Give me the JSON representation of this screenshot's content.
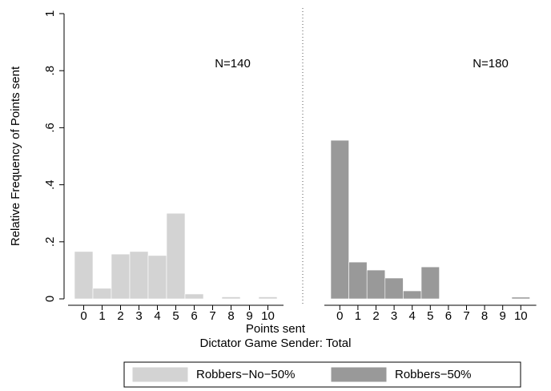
{
  "chart_data": {
    "type": "bar",
    "ylabel": "Relative Frequency of Points sent",
    "xlabel": "Points sent",
    "caption": "Dictator Game Sender: Total",
    "categories": [
      "0",
      "1",
      "2",
      "3",
      "4",
      "5",
      "6",
      "7",
      "8",
      "9",
      "10"
    ],
    "series": [
      {
        "name": "Robbers−No−50%",
        "color": "#d3d3d3",
        "annotation": "N=140",
        "values": [
          0.166,
          0.037,
          0.157,
          0.166,
          0.152,
          0.3,
          0.017,
          0,
          0.007,
          0,
          0.007
        ]
      },
      {
        "name": "Robbers−50%",
        "color": "#999999",
        "annotation": "N=180",
        "values": [
          0.556,
          0.129,
          0.101,
          0.073,
          0.028,
          0.112,
          0,
          0,
          0,
          0,
          0.006
        ]
      }
    ],
    "ylim": [
      0,
      1
    ],
    "yticks": [
      0,
      {
        "value": 0.2,
        "label": ".2"
      },
      {
        "value": 0.4,
        "label": ".4"
      },
      {
        "value": 0.6,
        "label": ".6"
      },
      {
        "value": 0.8,
        "label": ".8"
      },
      1
    ]
  }
}
